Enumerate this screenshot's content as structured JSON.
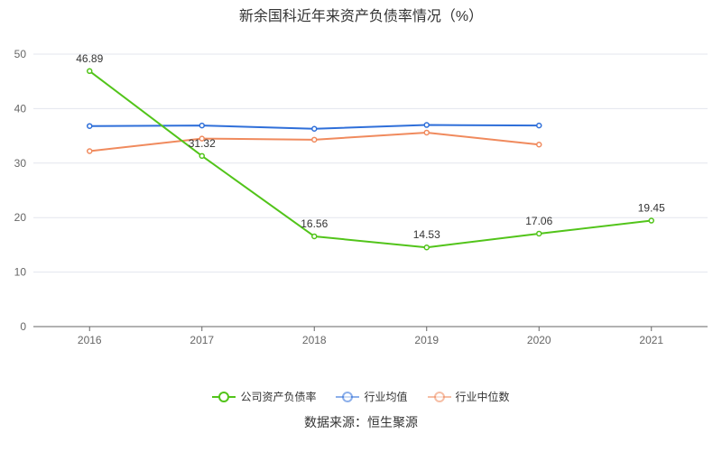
{
  "chart_data": {
    "type": "line",
    "title": "新余国科近年来资产负债率情况（%）",
    "categories": [
      "2016",
      "2017",
      "2018",
      "2019",
      "2020",
      "2021"
    ],
    "ylim": [
      0,
      50
    ],
    "yticks": [
      0,
      10,
      20,
      30,
      40,
      50
    ],
    "grid": true,
    "legend_position": "bottom",
    "series": [
      {
        "name": "公司资产负债率",
        "color": "#52c41a",
        "values": [
          46.89,
          31.32,
          16.56,
          14.53,
          17.06,
          19.45
        ],
        "labels": [
          "46.89",
          "31.32",
          "16.56",
          "14.53",
          "17.06",
          "19.45"
        ]
      },
      {
        "name": "行业均值",
        "color": "#2f6fd9",
        "values": [
          36.8,
          36.9,
          36.3,
          37.0,
          36.9,
          null
        ]
      },
      {
        "name": "行业中位数",
        "color": "#f08a5d",
        "values": [
          32.2,
          34.5,
          34.3,
          35.6,
          33.4,
          null
        ]
      }
    ],
    "source": "数据来源：恒生聚源"
  }
}
